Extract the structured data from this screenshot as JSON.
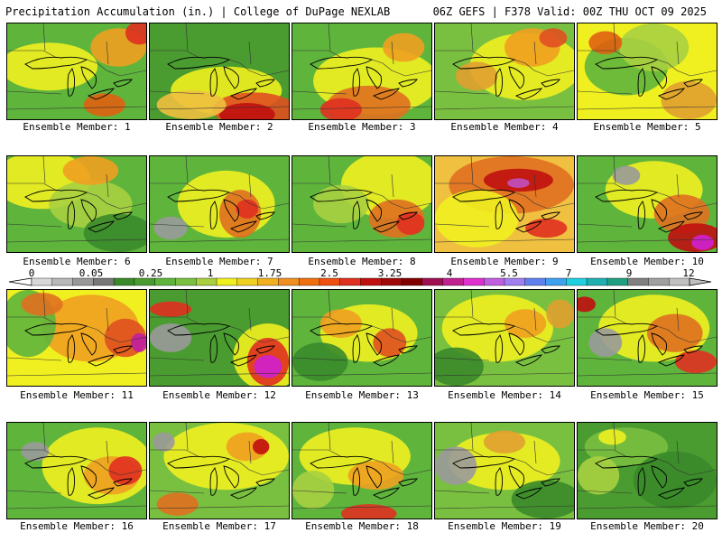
{
  "header": {
    "left": "Precipitation Accumulation (in.) | College of DuPage NEXLAB",
    "right": "06Z GEFS | F378 Valid: 00Z THU OCT 09 2025"
  },
  "members": [
    {
      "label": "Ensemble Member: 1",
      "base": "#5fb43c",
      "blobs": [
        [
          "#f0f020",
          0.3,
          0.45,
          0.35,
          0.25
        ],
        [
          "#f0a020",
          0.8,
          0.25,
          0.2,
          0.2
        ],
        [
          "#e03020",
          0.95,
          0.1,
          0.1,
          0.12
        ],
        [
          "#e06010",
          0.7,
          0.85,
          0.15,
          0.12
        ]
      ]
    },
    {
      "label": "Ensemble Member: 2",
      "base": "#4a9c30",
      "blobs": [
        [
          "#f0f020",
          0.55,
          0.7,
          0.4,
          0.25
        ],
        [
          "#e05020",
          0.75,
          0.9,
          0.3,
          0.18
        ],
        [
          "#c01010",
          0.7,
          0.95,
          0.2,
          0.12
        ],
        [
          "#f0c040",
          0.3,
          0.85,
          0.25,
          0.15
        ]
      ]
    },
    {
      "label": "Ensemble Member: 3",
      "base": "#5fb43c",
      "blobs": [
        [
          "#f0f020",
          0.6,
          0.6,
          0.45,
          0.35
        ],
        [
          "#e07020",
          0.55,
          0.85,
          0.3,
          0.2
        ],
        [
          "#e03020",
          0.35,
          0.9,
          0.15,
          0.12
        ],
        [
          "#f0a020",
          0.8,
          0.25,
          0.15,
          0.15
        ]
      ]
    },
    {
      "label": "Ensemble Member: 4",
      "base": "#7ac040",
      "blobs": [
        [
          "#f0f020",
          0.65,
          0.45,
          0.4,
          0.35
        ],
        [
          "#f0a020",
          0.7,
          0.25,
          0.2,
          0.2
        ],
        [
          "#e05020",
          0.85,
          0.15,
          0.1,
          0.1
        ],
        [
          "#e0a030",
          0.3,
          0.55,
          0.15,
          0.15
        ]
      ]
    },
    {
      "label": "Ensemble Member: 5",
      "base": "#f0f020",
      "blobs": [
        [
          "#5fb43c",
          0.35,
          0.45,
          0.3,
          0.3
        ],
        [
          "#a8d040",
          0.55,
          0.25,
          0.25,
          0.25
        ],
        [
          "#e0a030",
          0.8,
          0.8,
          0.2,
          0.2
        ],
        [
          "#e06010",
          0.2,
          0.2,
          0.12,
          0.12
        ]
      ]
    },
    {
      "label": "Ensemble Member: 6",
      "base": "#5fb43c",
      "blobs": [
        [
          "#f0f020",
          0.25,
          0.25,
          0.35,
          0.3
        ],
        [
          "#a8d040",
          0.6,
          0.5,
          0.3,
          0.25
        ],
        [
          "#f0a020",
          0.6,
          0.15,
          0.2,
          0.15
        ],
        [
          "#3a8a2a",
          0.8,
          0.8,
          0.25,
          0.2
        ]
      ]
    },
    {
      "label": "Ensemble Member: 7",
      "base": "#5fb43c",
      "blobs": [
        [
          "#f0f020",
          0.55,
          0.5,
          0.35,
          0.35
        ],
        [
          "#e07020",
          0.65,
          0.6,
          0.15,
          0.25
        ],
        [
          "#e03020",
          0.7,
          0.55,
          0.08,
          0.1
        ],
        [
          "#9a9a9a",
          0.15,
          0.75,
          0.12,
          0.12
        ]
      ]
    },
    {
      "label": "Ensemble Member: 8",
      "base": "#5fb43c",
      "blobs": [
        [
          "#f0f020",
          0.7,
          0.3,
          0.35,
          0.35
        ],
        [
          "#e07020",
          0.75,
          0.65,
          0.2,
          0.2
        ],
        [
          "#e03020",
          0.85,
          0.7,
          0.1,
          0.12
        ],
        [
          "#a8d040",
          0.35,
          0.5,
          0.2,
          0.2
        ]
      ]
    },
    {
      "label": "Ensemble Member: 9",
      "base": "#f0c040",
      "blobs": [
        [
          "#e07020",
          0.55,
          0.3,
          0.45,
          0.3
        ],
        [
          "#c01010",
          0.6,
          0.25,
          0.25,
          0.12
        ],
        [
          "#c050c0",
          0.6,
          0.28,
          0.08,
          0.05
        ],
        [
          "#f0f020",
          0.3,
          0.65,
          0.3,
          0.3
        ],
        [
          "#e03020",
          0.8,
          0.75,
          0.15,
          0.1
        ]
      ]
    },
    {
      "label": "Ensemble Member: 10",
      "base": "#5fb43c",
      "blobs": [
        [
          "#f0f020",
          0.55,
          0.35,
          0.35,
          0.3
        ],
        [
          "#e07020",
          0.75,
          0.6,
          0.2,
          0.2
        ],
        [
          "#c01010",
          0.85,
          0.85,
          0.2,
          0.15
        ],
        [
          "#d020d0",
          0.9,
          0.9,
          0.08,
          0.08
        ],
        [
          "#9a9a9a",
          0.35,
          0.2,
          0.1,
          0.1
        ]
      ]
    },
    {
      "label": "Ensemble Member: 11",
      "base": "#f0f020",
      "blobs": [
        [
          "#f0a020",
          0.6,
          0.4,
          0.35,
          0.35
        ],
        [
          "#e05020",
          0.85,
          0.5,
          0.15,
          0.2
        ],
        [
          "#c020a0",
          0.95,
          0.55,
          0.06,
          0.1
        ],
        [
          "#5fb43c",
          0.15,
          0.35,
          0.2,
          0.35
        ],
        [
          "#e07020",
          0.25,
          0.15,
          0.15,
          0.12
        ]
      ]
    },
    {
      "label": "Ensemble Member: 12",
      "base": "#4a9c30",
      "blobs": [
        [
          "#f0f020",
          0.85,
          0.7,
          0.25,
          0.35
        ],
        [
          "#e03020",
          0.85,
          0.75,
          0.15,
          0.25
        ],
        [
          "#d020d0",
          0.85,
          0.8,
          0.1,
          0.12
        ],
        [
          "#9a9a9a",
          0.15,
          0.5,
          0.15,
          0.15
        ],
        [
          "#e03020",
          0.15,
          0.2,
          0.15,
          0.08
        ]
      ]
    },
    {
      "label": "Ensemble Member: 13",
      "base": "#5fb43c",
      "blobs": [
        [
          "#f0f020",
          0.55,
          0.45,
          0.35,
          0.3
        ],
        [
          "#f0a020",
          0.35,
          0.35,
          0.15,
          0.15
        ],
        [
          "#e05020",
          0.7,
          0.55,
          0.12,
          0.15
        ],
        [
          "#3a8a2a",
          0.2,
          0.75,
          0.2,
          0.2
        ]
      ]
    },
    {
      "label": "Ensemble Member: 14",
      "base": "#7ac040",
      "blobs": [
        [
          "#f0f020",
          0.45,
          0.4,
          0.4,
          0.35
        ],
        [
          "#f0a020",
          0.65,
          0.35,
          0.15,
          0.15
        ],
        [
          "#3a8a2a",
          0.15,
          0.8,
          0.2,
          0.2
        ],
        [
          "#e0a030",
          0.9,
          0.25,
          0.1,
          0.15
        ]
      ]
    },
    {
      "label": "Ensemble Member: 15",
      "base": "#5fb43c",
      "blobs": [
        [
          "#f0f020",
          0.55,
          0.4,
          0.4,
          0.35
        ],
        [
          "#e07020",
          0.7,
          0.45,
          0.2,
          0.2
        ],
        [
          "#9a9a9a",
          0.2,
          0.55,
          0.12,
          0.15
        ],
        [
          "#e03020",
          0.85,
          0.75,
          0.15,
          0.12
        ],
        [
          "#c01010",
          0.05,
          0.15,
          0.08,
          0.08
        ]
      ]
    },
    {
      "label": "Ensemble Member: 16",
      "base": "#5fb43c",
      "blobs": [
        [
          "#f0f020",
          0.65,
          0.45,
          0.4,
          0.4
        ],
        [
          "#f0a020",
          0.75,
          0.55,
          0.2,
          0.2
        ],
        [
          "#e03020",
          0.85,
          0.5,
          0.12,
          0.15
        ],
        [
          "#9a9a9a",
          0.2,
          0.3,
          0.1,
          0.1
        ]
      ]
    },
    {
      "label": "Ensemble Member: 17",
      "base": "#7ac040",
      "blobs": [
        [
          "#f0f020",
          0.55,
          0.35,
          0.45,
          0.35
        ],
        [
          "#f0a020",
          0.7,
          0.25,
          0.15,
          0.15
        ],
        [
          "#c01010",
          0.8,
          0.25,
          0.06,
          0.08
        ],
        [
          "#9a9a9a",
          0.1,
          0.2,
          0.08,
          0.1
        ],
        [
          "#e07020",
          0.2,
          0.85,
          0.15,
          0.12
        ]
      ]
    },
    {
      "label": "Ensemble Member: 18",
      "base": "#5fb43c",
      "blobs": [
        [
          "#f0f020",
          0.45,
          0.35,
          0.4,
          0.3
        ],
        [
          "#f0a020",
          0.6,
          0.55,
          0.2,
          0.15
        ],
        [
          "#e03020",
          0.55,
          0.95,
          0.2,
          0.1
        ],
        [
          "#a8d040",
          0.15,
          0.7,
          0.15,
          0.2
        ]
      ]
    },
    {
      "label": "Ensemble Member: 19",
      "base": "#7ac040",
      "blobs": [
        [
          "#f0f020",
          0.5,
          0.4,
          0.4,
          0.3
        ],
        [
          "#9a9a9a",
          0.15,
          0.45,
          0.15,
          0.2
        ],
        [
          "#e0a030",
          0.5,
          0.2,
          0.15,
          0.12
        ],
        [
          "#3a8a2a",
          0.8,
          0.8,
          0.25,
          0.2
        ]
      ]
    },
    {
      "label": "Ensemble Member: 20",
      "base": "#4a9c30",
      "blobs": [
        [
          "#7ac040",
          0.35,
          0.25,
          0.3,
          0.2
        ],
        [
          "#a8d040",
          0.15,
          0.55,
          0.15,
          0.2
        ],
        [
          "#f0f020",
          0.25,
          0.15,
          0.1,
          0.08
        ],
        [
          "#3a8a2a",
          0.7,
          0.6,
          0.3,
          0.3
        ]
      ]
    }
  ],
  "colorbar": {
    "ticks": [
      "0",
      "0.05",
      "0.25",
      "1",
      "1.75",
      "2.5",
      "3.25",
      "4",
      "5.5",
      "7",
      "9",
      "12"
    ],
    "colors": [
      "#d8d8d8",
      "#b8b8b8",
      "#989898",
      "#787878",
      "#3a8a2a",
      "#4a9c30",
      "#5fb43c",
      "#7ac040",
      "#a8d040",
      "#f0f020",
      "#f0d020",
      "#f0b020",
      "#f09020",
      "#f07010",
      "#f05010",
      "#e03020",
      "#c01010",
      "#a00808",
      "#800000",
      "#a01050",
      "#c02090",
      "#e030d0",
      "#c060e0",
      "#a080f0",
      "#6080f0",
      "#40a0f0",
      "#20d0e0",
      "#20b0b0",
      "#20a080",
      "#808080",
      "#a0a0a0",
      "#c0c0c0"
    ]
  }
}
